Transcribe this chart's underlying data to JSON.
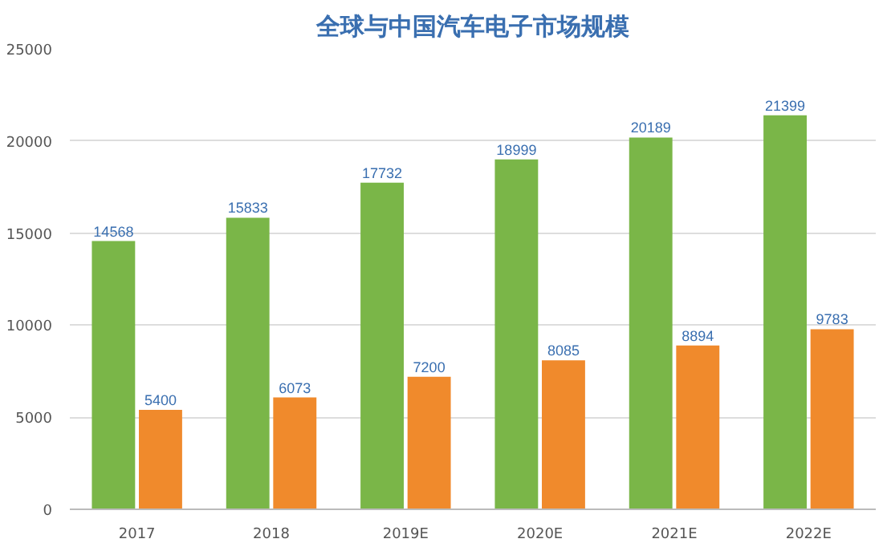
{
  "chart_data": {
    "type": "bar",
    "title": "全球与中国汽车电子市场规模",
    "categories": [
      "2017",
      "2018",
      "2019E",
      "2020E",
      "2021E",
      "2022E"
    ],
    "series": [
      {
        "color": "#7ab648",
        "values": [
          14568,
          15833,
          17732,
          18999,
          20189,
          21399
        ]
      },
      {
        "color": "#f08a2c",
        "values": [
          5400,
          6073,
          7200,
          8085,
          8894,
          9783
        ]
      }
    ],
    "ylim": [
      0,
      25000
    ],
    "yticks": [
      0,
      5000,
      10000,
      15000,
      20000,
      25000
    ],
    "grid": "y",
    "data_labels": true
  }
}
